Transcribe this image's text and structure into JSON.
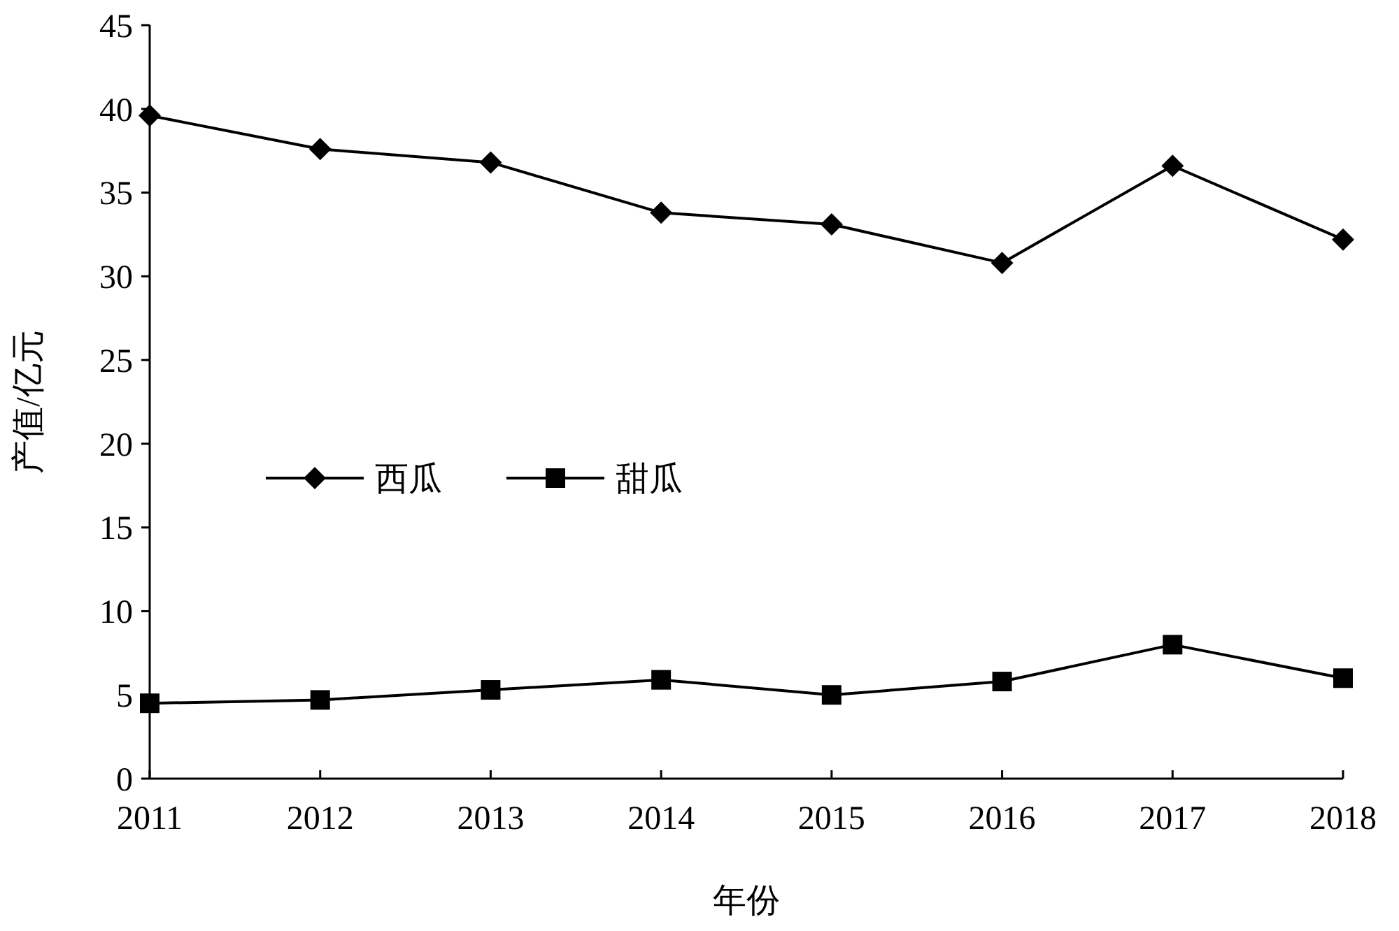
{
  "chart_data": {
    "type": "line",
    "xlabel": "年份",
    "ylabel": "产值/亿元",
    "x": [
      2011,
      2012,
      2013,
      2014,
      2015,
      2016,
      2017,
      2018
    ],
    "series": [
      {
        "name": "西瓜",
        "color": "#000000",
        "marker": "diamond",
        "values": [
          39.6,
          37.6,
          36.8,
          33.8,
          33.1,
          30.8,
          36.6,
          32.2
        ]
      },
      {
        "name": "甜瓜",
        "color": "#000000",
        "marker": "square",
        "values": [
          4.5,
          4.7,
          5.3,
          5.9,
          5.0,
          5.8,
          8.0,
          6.0
        ]
      }
    ],
    "xlim": [
      2011,
      2018
    ],
    "xticks": [
      2011,
      2012,
      2013,
      2014,
      2015,
      2016,
      2017,
      2018
    ],
    "ylim": [
      0,
      45
    ],
    "yticks": [
      0,
      5,
      10,
      15,
      20,
      25,
      30,
      35,
      40,
      45
    ],
    "grid": false,
    "legend": "left",
    "line_style": "solid"
  }
}
